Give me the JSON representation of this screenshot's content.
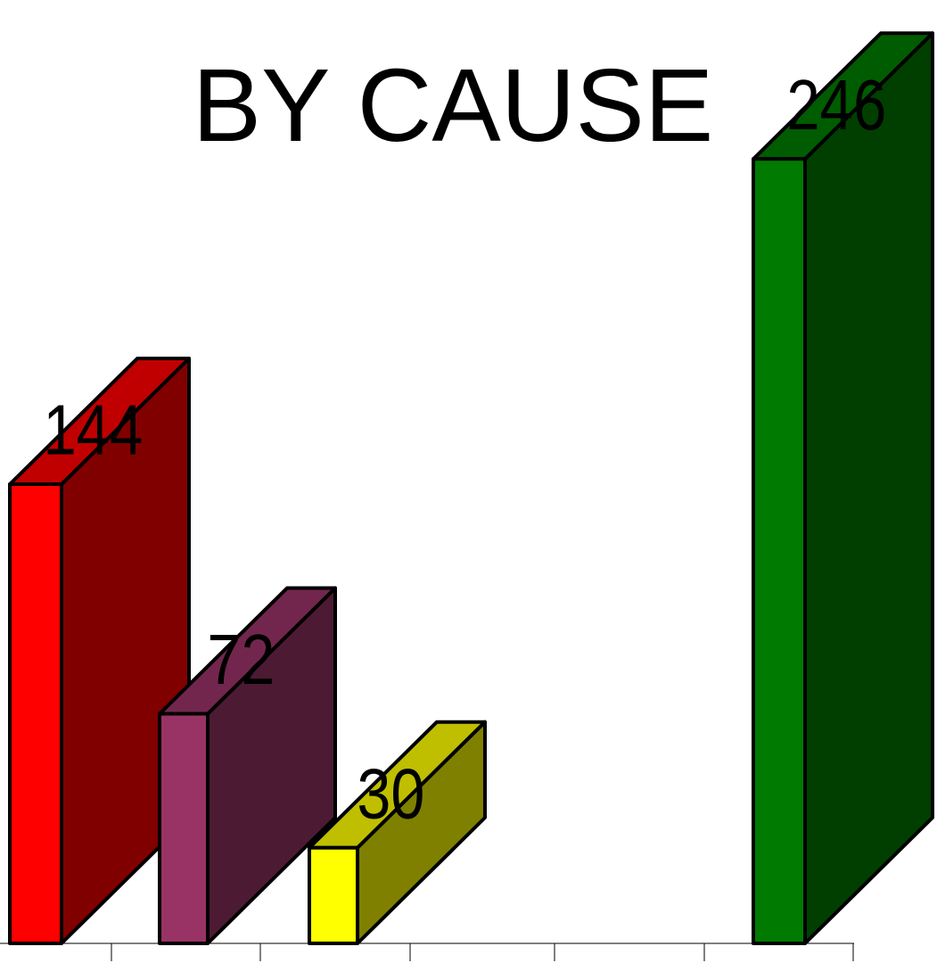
{
  "chart_data": {
    "type": "bar",
    "title": "BY CAUSE",
    "categories": [
      "",
      "",
      "",
      "",
      ""
    ],
    "values": [
      144,
      72,
      30,
      null,
      246
    ],
    "data_labels": [
      "144",
      "72",
      "30",
      "",
      "246"
    ],
    "colors": {
      "front": [
        "#ff0000",
        "#993366",
        "#ffff00",
        "",
        "#007a00"
      ],
      "top": [
        "#c00000",
        "#73264d",
        "#bfbf00",
        "",
        "#005c00"
      ],
      "side": [
        "#800000",
        "#4d1a33",
        "#808000",
        "",
        "#003f00"
      ]
    },
    "three_d": true,
    "grid": false,
    "legend": "none"
  }
}
